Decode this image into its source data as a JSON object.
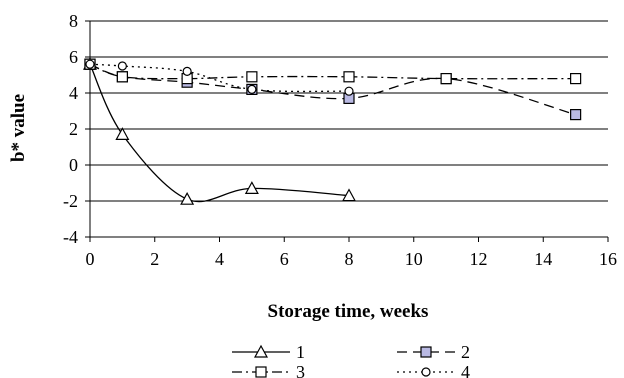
{
  "chart_data": {
    "type": "line",
    "title": "",
    "xlabel": "Storage time, weeks",
    "ylabel": "b* value",
    "xlim": [
      0,
      16
    ],
    "ylim": [
      -4,
      8
    ],
    "x_ticks": [
      "0",
      "2",
      "4",
      "6",
      "8",
      "10",
      "12",
      "14",
      "16"
    ],
    "y_ticks": [
      "8",
      "6",
      "4",
      "2",
      "0",
      "-2",
      "-4"
    ],
    "grid": "horizontal",
    "legend_position": "bottom",
    "series": [
      {
        "name": "1",
        "marker": "triangle",
        "line_style": "solid",
        "marker_fill": "#ffffff",
        "x": [
          0,
          1,
          3,
          5,
          8
        ],
        "y": [
          5.6,
          1.7,
          -1.9,
          -1.3,
          -1.7
        ]
      },
      {
        "name": "2",
        "marker": "square",
        "line_style": "dashed",
        "marker_fill": "#b9b9e3",
        "x": [
          0,
          1,
          3,
          5,
          8,
          11,
          15
        ],
        "y": [
          5.6,
          4.9,
          4.6,
          4.2,
          3.7,
          4.8,
          2.8
        ]
      },
      {
        "name": "3",
        "marker": "square",
        "line_style": "dash-dot",
        "marker_fill": "#ffffff",
        "x": [
          0,
          1,
          3,
          5,
          8,
          11,
          15
        ],
        "y": [
          5.6,
          4.9,
          4.8,
          4.9,
          4.9,
          4.8,
          4.8
        ]
      },
      {
        "name": "4",
        "marker": "circle",
        "line_style": "dotted",
        "marker_fill": "#ffffff",
        "x": [
          0,
          1,
          3,
          5,
          8
        ],
        "y": [
          5.6,
          5.5,
          5.2,
          4.2,
          4.1
        ]
      }
    ]
  }
}
